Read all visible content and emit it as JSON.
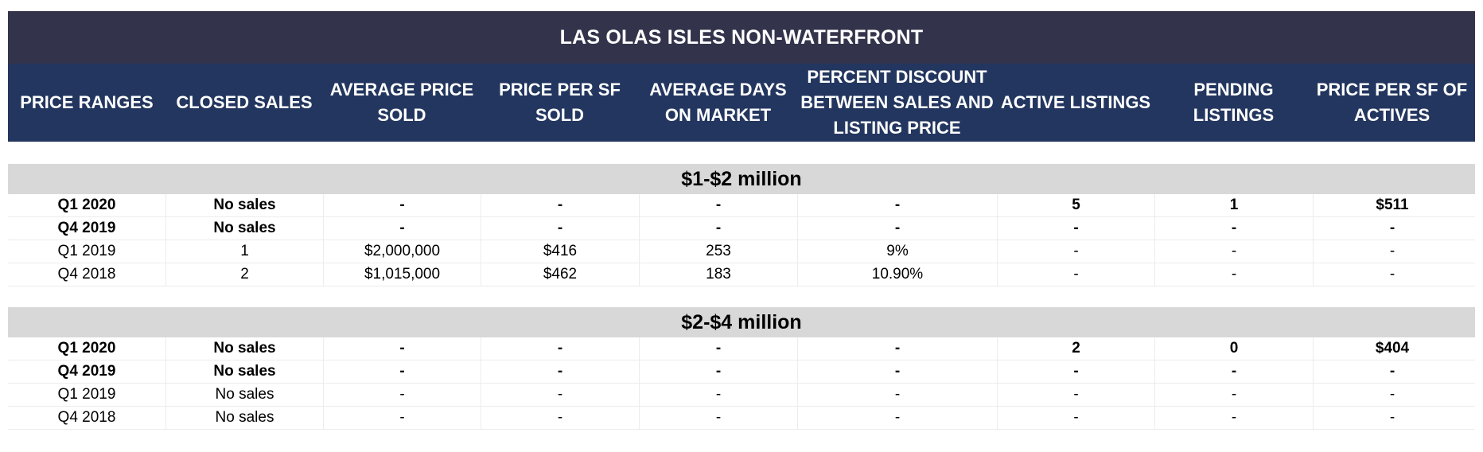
{
  "title": "LAS OLAS ISLES NON-WATERFRONT",
  "columns": [
    "PRICE RANGES",
    "CLOSED SALES",
    "AVERAGE PRICE\nSOLD",
    "PRICE PER SF\nSOLD",
    "AVERAGE DAYS\nON MARKET",
    "PERCENT DISCOUNT\nBETWEEN SALES AND\nLISTING PRICE",
    "ACTIVE LISTINGS",
    "PENDING\nLISTINGS",
    "PRICE PER SF OF\nACTIVES"
  ],
  "sections": [
    {
      "label": "$1-$2 million",
      "rows": [
        {
          "bold": true,
          "cells": [
            "Q1 2020",
            "No sales",
            "-",
            "-",
            "-",
            "-",
            "5",
            "1",
            "$511"
          ]
        },
        {
          "bold": true,
          "cells": [
            "Q4 2019",
            "No sales",
            "-",
            "-",
            "-",
            "-",
            "-",
            "-",
            "-"
          ]
        },
        {
          "bold": false,
          "cells": [
            "Q1 2019",
            "1",
            "$2,000,000",
            "$416",
            "253",
            "9%",
            "-",
            "-",
            "-"
          ]
        },
        {
          "bold": false,
          "cells": [
            "Q4 2018",
            "2",
            "$1,015,000",
            "$462",
            "183",
            "10.90%",
            "-",
            "-",
            "-"
          ]
        }
      ]
    },
    {
      "label": "$2-$4 million",
      "rows": [
        {
          "bold": true,
          "cells": [
            "Q1 2020",
            "No sales",
            "-",
            "-",
            "-",
            "-",
            "2",
            "0",
            "$404"
          ]
        },
        {
          "bold": true,
          "cells": [
            "Q4 2019",
            "No sales",
            "-",
            "-",
            "-",
            "-",
            "-",
            "-",
            "-"
          ]
        },
        {
          "bold": false,
          "cells": [
            "Q1 2019",
            "No sales",
            "-",
            "-",
            "-",
            "-",
            "-",
            "-",
            "-"
          ]
        },
        {
          "bold": false,
          "cells": [
            "Q4 2018",
            "No sales",
            "-",
            "-",
            "-",
            "-",
            "-",
            "-",
            "-"
          ]
        }
      ]
    }
  ]
}
